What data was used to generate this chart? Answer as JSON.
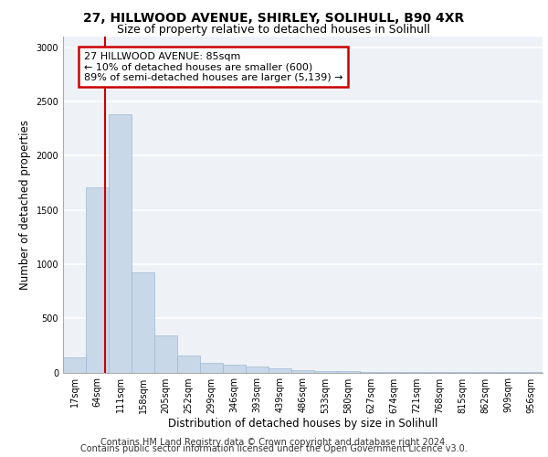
{
  "title_line1": "27, HILLWOOD AVENUE, SHIRLEY, SOLIHULL, B90 4XR",
  "title_line2": "Size of property relative to detached houses in Solihull",
  "xlabel": "Distribution of detached houses by size in Solihull",
  "ylabel": "Number of detached properties",
  "bin_labels": [
    "17sqm",
    "64sqm",
    "111sqm",
    "158sqm",
    "205sqm",
    "252sqm",
    "299sqm",
    "346sqm",
    "393sqm",
    "439sqm",
    "486sqm",
    "533sqm",
    "580sqm",
    "627sqm",
    "674sqm",
    "721sqm",
    "768sqm",
    "815sqm",
    "862sqm",
    "909sqm",
    "956sqm"
  ],
  "bar_values": [
    140,
    1710,
    2380,
    920,
    340,
    160,
    90,
    75,
    55,
    35,
    25,
    15,
    10,
    5,
    5,
    3,
    2,
    2,
    1,
    1,
    1
  ],
  "bar_color": "#c8d8e8",
  "bar_edgecolor": "#a0b8d0",
  "property_line_x": 1.35,
  "annotation_text": "27 HILLWOOD AVENUE: 85sqm\n← 10% of detached houses are smaller (600)\n89% of semi-detached houses are larger (5,139) →",
  "annotation_box_color": "#ffffff",
  "annotation_box_edgecolor": "#cc0000",
  "red_line_color": "#cc0000",
  "ylim": [
    0,
    3100
  ],
  "yticks": [
    0,
    500,
    1000,
    1500,
    2000,
    2500,
    3000
  ],
  "footer_line1": "Contains HM Land Registry data © Crown copyright and database right 2024.",
  "footer_line2": "Contains public sector information licensed under the Open Government Licence v3.0.",
  "plot_background": "#eef2f7",
  "grid_color": "#ffffff",
  "title_fontsize": 10,
  "subtitle_fontsize": 9,
  "axis_label_fontsize": 8.5,
  "tick_fontsize": 7,
  "annotation_fontsize": 8,
  "footer_fontsize": 7
}
